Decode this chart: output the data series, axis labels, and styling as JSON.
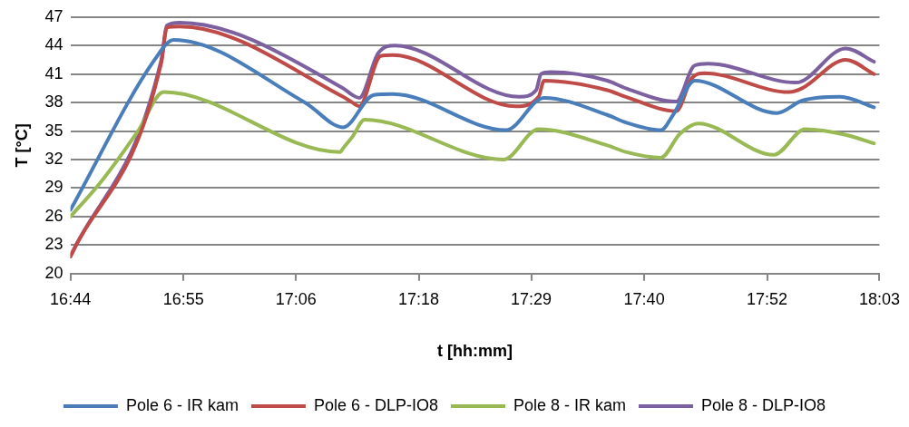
{
  "chart_data": {
    "type": "line",
    "xlabel": "t [hh:mm]",
    "ylabel": "T [°C]",
    "xlim": [
      16.733,
      18.05
    ],
    "xticks": [
      {
        "value": 16.733,
        "label": "16:44"
      },
      {
        "value": 16.917,
        "label": "16:55"
      },
      {
        "value": 17.1,
        "label": "17:06"
      },
      {
        "value": 17.3,
        "label": "17:18"
      },
      {
        "value": 17.483,
        "label": "17:29"
      },
      {
        "value": 17.667,
        "label": "17:40"
      },
      {
        "value": 17.867,
        "label": "17:52"
      },
      {
        "value": 18.05,
        "label": "18:03"
      }
    ],
    "ylim": [
      20,
      47
    ],
    "yticks": [
      20,
      23,
      26,
      29,
      32,
      35,
      38,
      41,
      44,
      47
    ],
    "grid": "y",
    "legend": "bottom",
    "marker": "none",
    "line_style": "solid",
    "series": [
      {
        "name": "Pole 6 - IR kam",
        "color": "#4a7ebb",
        "x": [
          16.733,
          16.87,
          16.901,
          17.115,
          17.177,
          17.227,
          17.258,
          17.442,
          17.504,
          17.607,
          17.637,
          17.694,
          17.714,
          17.749,
          17.883,
          17.924,
          17.986,
          18.041
        ],
        "values": [
          26.7,
          42.5,
          44.6,
          38.0,
          35.4,
          38.8,
          38.9,
          35.1,
          38.5,
          36.7,
          35.9,
          35.1,
          36.7,
          40.3,
          36.9,
          38.2,
          38.6,
          37.5
        ]
      },
      {
        "name": "Pole 6 - DLP-IO8",
        "color": "#be4b48",
        "x": [
          16.733,
          16.881,
          16.89,
          16.911,
          17.177,
          17.192,
          17.203,
          17.238,
          17.258,
          17.458,
          17.495,
          17.504,
          17.607,
          17.637,
          17.719,
          17.745,
          17.765,
          17.903,
          17.924,
          17.995,
          18.041
        ],
        "values": [
          21.8,
          42.2,
          45.9,
          46.0,
          38.6,
          38.0,
          37.6,
          42.9,
          43.0,
          37.6,
          38.6,
          40.3,
          39.3,
          38.6,
          37.1,
          40.6,
          41.1,
          39.1,
          39.5,
          42.5,
          41.0
        ]
      },
      {
        "name": "Pole 8 - IR kam",
        "color": "#98b954",
        "x": [
          16.733,
          16.782,
          16.844,
          16.885,
          17.172,
          17.177,
          17.192,
          17.212,
          17.438,
          17.495,
          17.607,
          17.637,
          17.694,
          17.725,
          17.755,
          17.878,
          17.929,
          17.995,
          18.041
        ],
        "values": [
          26.0,
          29.6,
          35.1,
          39.1,
          32.8,
          33.2,
          34.4,
          36.2,
          32.0,
          35.2,
          33.5,
          32.8,
          32.2,
          34.7,
          35.8,
          32.5,
          35.2,
          34.6,
          33.7
        ]
      },
      {
        "name": "Pole 8 - DLP-IO8",
        "color": "#7d60a0",
        "x": [
          16.733,
          16.881,
          16.89,
          16.911,
          17.177,
          17.192,
          17.203,
          17.234,
          17.261,
          17.464,
          17.491,
          17.499,
          17.515,
          17.607,
          17.637,
          17.719,
          17.749,
          17.771,
          17.914,
          17.995,
          18.041
        ],
        "values": [
          21.8,
          42.5,
          46.1,
          46.4,
          39.5,
          38.8,
          38.5,
          43.2,
          44.0,
          38.6,
          39.3,
          41.0,
          41.2,
          40.3,
          39.5,
          38.1,
          41.9,
          42.1,
          40.1,
          43.7,
          42.3
        ]
      }
    ]
  }
}
